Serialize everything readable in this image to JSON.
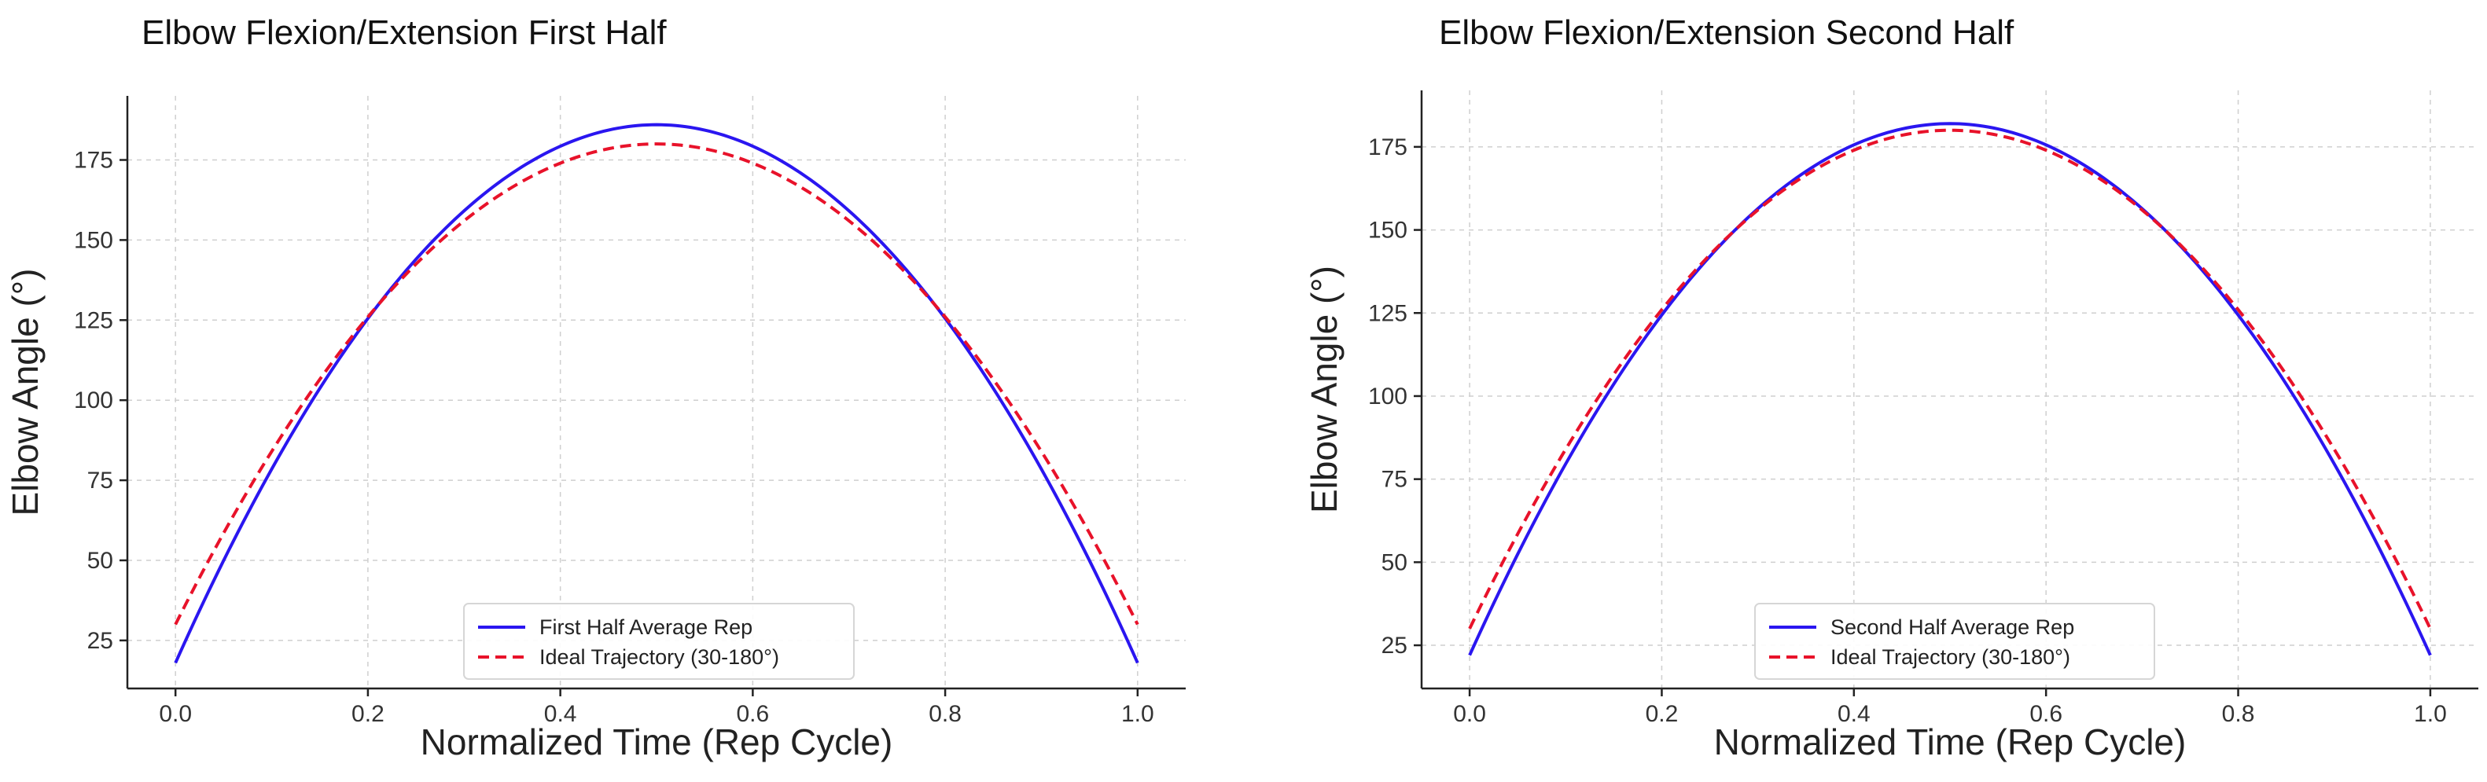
{
  "chart_data": [
    {
      "type": "line",
      "title": "Elbow Flexion/Extension First Half",
      "xlabel": "Normalized Time (Rep Cycle)",
      "ylabel": "Elbow Angle (°)",
      "xlim": [
        -0.05,
        1.05
      ],
      "ylim": [
        10,
        195
      ],
      "xticks": [
        0.0,
        0.2,
        0.4,
        0.6,
        0.8,
        1.0
      ],
      "xtick_labels": [
        "0.0",
        "0.2",
        "0.4",
        "0.6",
        "0.8",
        "1.0"
      ],
      "yticks": [
        25,
        50,
        75,
        100,
        125,
        150,
        175
      ],
      "ytick_labels": [
        "25",
        "50",
        "75",
        "100",
        "125",
        "150",
        "175"
      ],
      "grid": true,
      "legend_position": "bottom-center",
      "series": [
        {
          "name": "First Half Average Rep",
          "color": "#2a16f0",
          "style": "solid",
          "start": 18,
          "peak": 186,
          "end": 18
        },
        {
          "name": "Ideal Trajectory (30-180°)",
          "color": "#e8122a",
          "style": "dashed",
          "start": 30,
          "peak": 180,
          "end": 30
        }
      ]
    },
    {
      "type": "line",
      "title": "Elbow Flexion/Extension Second Half",
      "xlabel": "Normalized Time (Rep Cycle)",
      "ylabel": "Elbow Angle (°)",
      "xlim": [
        -0.05,
        1.05
      ],
      "ylim": [
        12,
        192
      ],
      "xticks": [
        0.0,
        0.2,
        0.4,
        0.6,
        0.8,
        1.0
      ],
      "xtick_labels": [
        "0.0",
        "0.2",
        "0.4",
        "0.6",
        "0.8",
        "1.0"
      ],
      "yticks": [
        25,
        50,
        75,
        100,
        125,
        150,
        175
      ],
      "ytick_labels": [
        "25",
        "50",
        "75",
        "100",
        "125",
        "150",
        "175"
      ],
      "grid": true,
      "legend_position": "bottom-center",
      "series": [
        {
          "name": "Second Half Average Rep",
          "color": "#2a16f0",
          "style": "solid",
          "start": 22,
          "peak": 182,
          "end": 22
        },
        {
          "name": "Ideal Trajectory (30-180°)",
          "color": "#e8122a",
          "style": "dashed",
          "start": 30,
          "peak": 180,
          "end": 30
        }
      ]
    }
  ]
}
